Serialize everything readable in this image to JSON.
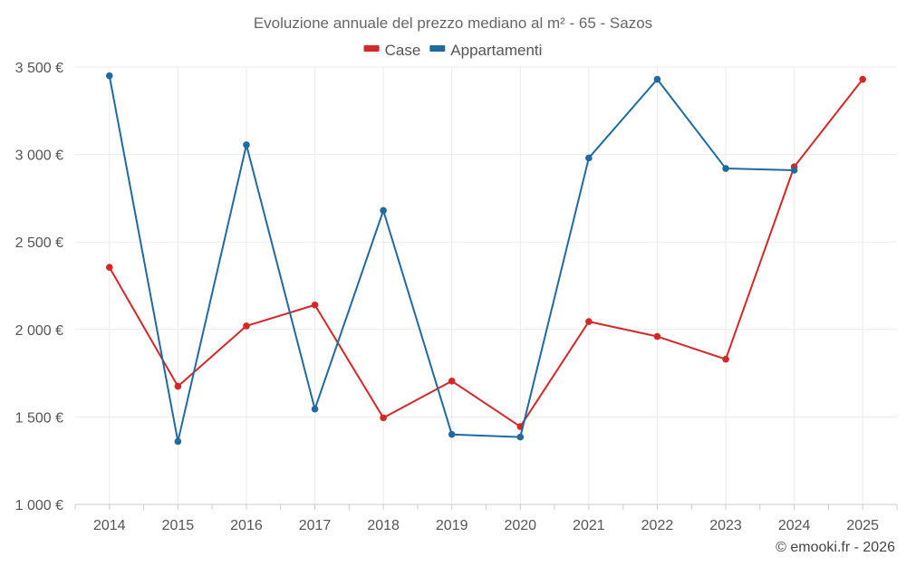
{
  "chart_data": {
    "type": "line",
    "title": "Evoluzione annuale del prezzo mediano al m² - 65 - Sazos",
    "categories": [
      "2014",
      "2015",
      "2016",
      "2017",
      "2018",
      "2019",
      "2020",
      "2021",
      "2022",
      "2023",
      "2024",
      "2025"
    ],
    "series": [
      {
        "name": "Case",
        "color": "#d62728",
        "values": [
          2355,
          1675,
          2020,
          2140,
          1495,
          1705,
          1445,
          2045,
          1960,
          1830,
          2930,
          3430
        ]
      },
      {
        "name": "Appartamenti",
        "color": "#1f6aa0",
        "values": [
          3450,
          1360,
          3055,
          1545,
          2680,
          1400,
          1385,
          2980,
          3430,
          2920,
          2910,
          null
        ]
      }
    ],
    "ylim": [
      1000,
      3500
    ],
    "yticks": [
      1000,
      1500,
      2000,
      2500,
      3000,
      3500
    ],
    "ytick_labels": [
      "1 000 €",
      "1 500 €",
      "2 000 €",
      "2 500 €",
      "3 000 €",
      "3 500 €"
    ],
    "xlabel": "",
    "ylabel": "",
    "grid": true,
    "legend_position": "top-center"
  },
  "credit": "© emooki.fr - 2026"
}
